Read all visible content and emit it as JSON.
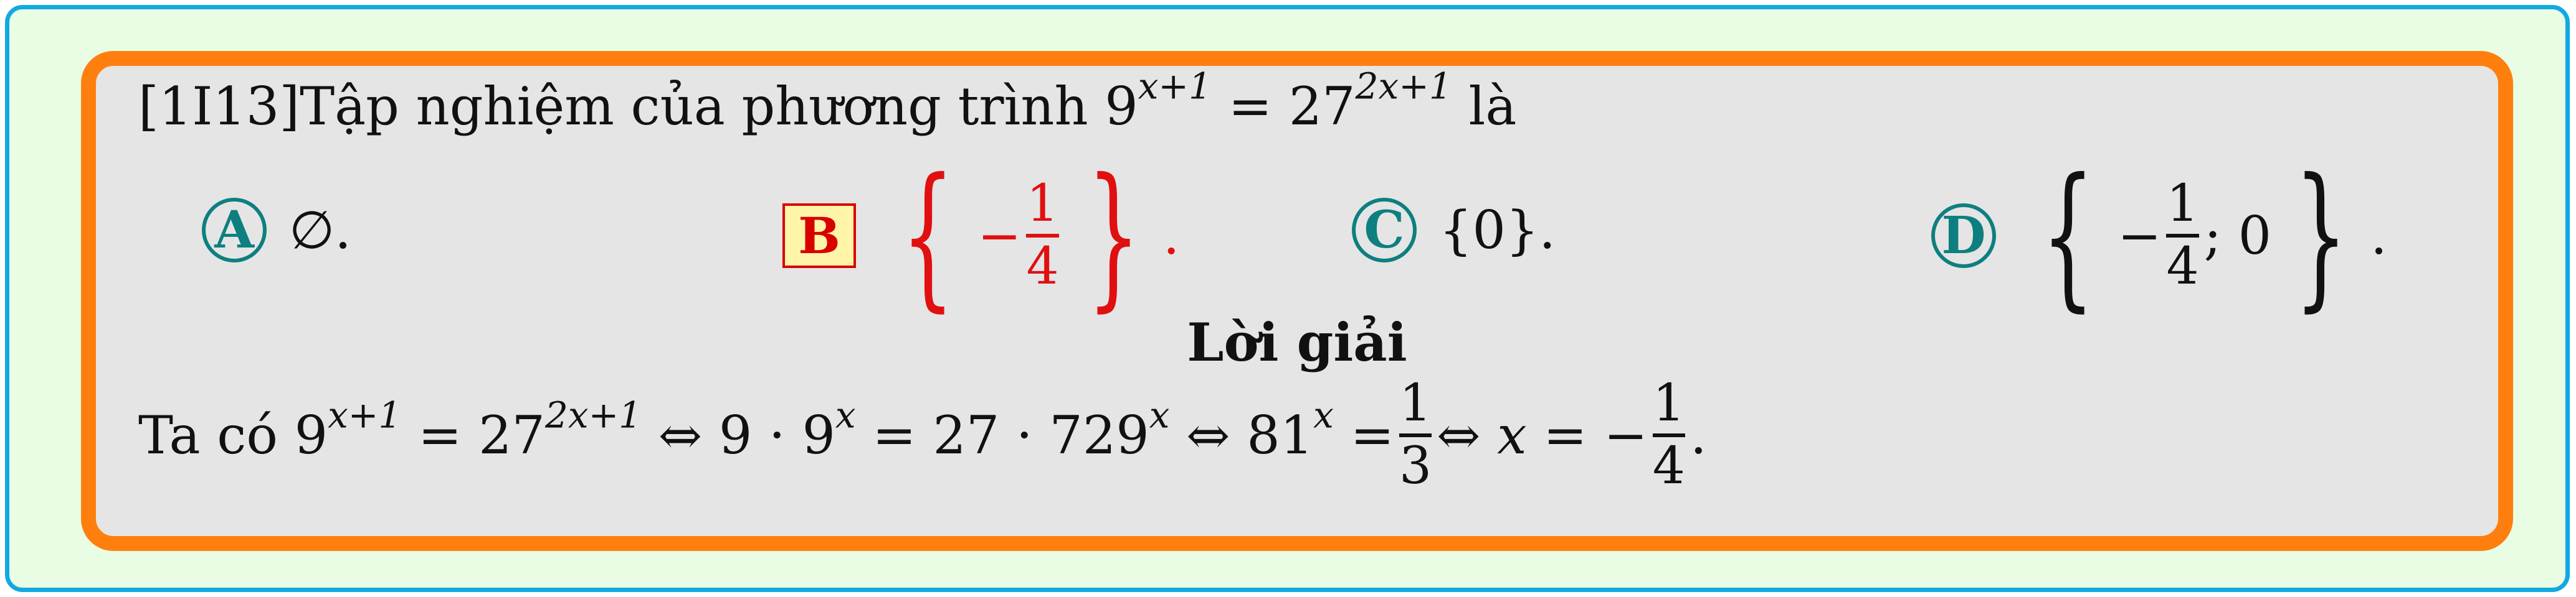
{
  "question": {
    "code": "[1I13]",
    "text": "Tập nghiệm của phương trình",
    "lhs_base": "9",
    "lhs_exp": "x+1",
    "equals": "=",
    "rhs_base": "27",
    "rhs_exp": "2x+1",
    "tail": "là"
  },
  "options": {
    "a": {
      "label": "A",
      "text": "∅."
    },
    "b": {
      "label": "B",
      "neg": "−",
      "num": "1",
      "den": "4",
      "dot": "."
    },
    "c": {
      "label": "C",
      "text": "{0}."
    },
    "d": {
      "label": "D",
      "neg": "−",
      "num": "1",
      "den": "4",
      "rest": "; 0",
      "dot": "."
    }
  },
  "solution": {
    "title": "Lời giải",
    "prefix": "Ta có",
    "step1_base": "9",
    "step1_exp": "x+1",
    "step1_rhs_base": "27",
    "step1_rhs_exp": "2x+1",
    "step2_left": "9 · 9",
    "step2_left_exp": "x",
    "step2_right": "27 · 729",
    "step2_right_exp": "x",
    "step3_left": "81",
    "step3_left_exp": "x",
    "frac1_num": "1",
    "frac1_den": "3",
    "x": "x",
    "neg": "−",
    "frac2_num": "1",
    "frac2_den": "4",
    "iff": "⇔",
    "equals": "=",
    "end": "."
  },
  "colors": {
    "outer_border": "#12a9e3",
    "outer_fill": "#e8fde3",
    "inner_border": "#ff7f0e",
    "inner_fill": "#e5e5e5",
    "option_circle": "#0e7f80",
    "correct": "#e01010"
  }
}
